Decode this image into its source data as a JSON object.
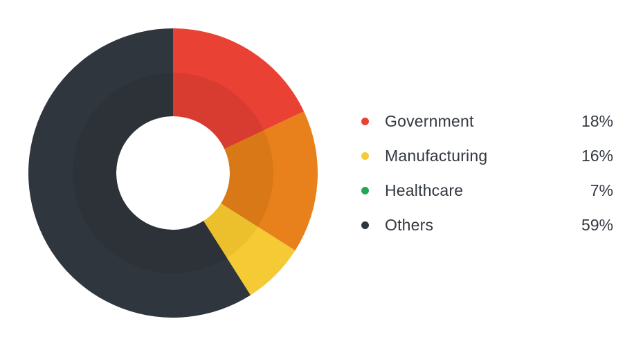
{
  "chart_data": {
    "type": "pie",
    "variant": "donut",
    "title": "",
    "slices": [
      {
        "label": "Government",
        "value": 18,
        "display": "18%",
        "color": "#ea4135",
        "shade": "#d83b30"
      },
      {
        "label": "Manufacturing",
        "value": 16,
        "display": "16%",
        "color": "#e8811c",
        "shade": "#d97816"
      },
      {
        "label": "Healthcare",
        "value": 7,
        "display": "7%",
        "color": "#f6ca35",
        "shade": "#ecc02c"
      },
      {
        "label": "Others",
        "value": 59,
        "display": "59%",
        "color": "#30363d",
        "shade": "#2c3238"
      }
    ],
    "legend": {
      "placement": "right",
      "items": [
        {
          "label": "Government",
          "value": "18%",
          "dot_color": "#ea4135"
        },
        {
          "label": "Manufacturing",
          "value": "16%",
          "dot_color": "#f6ca35"
        },
        {
          "label": "Healthcare",
          "value": "7%",
          "dot_color": "#21a84f"
        },
        {
          "label": "Others",
          "value": "59%",
          "dot_color": "#30363d"
        }
      ]
    }
  }
}
